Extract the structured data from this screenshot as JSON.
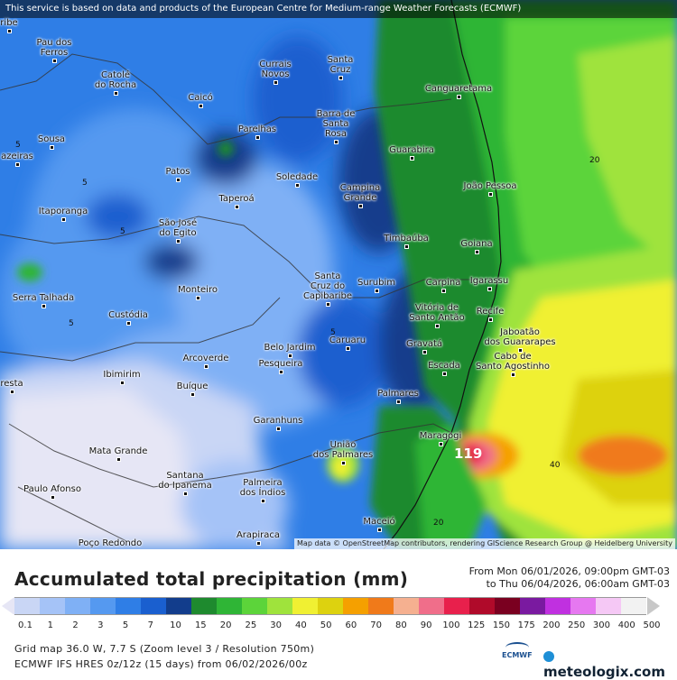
{
  "banner": "This service is based on data and products of the European Centre for Medium-range Weather Forecasts (ECMWF)",
  "attribution": "Map data © OpenStreetMap contributors, rendering GIScience Research Group @ Heidelberg University",
  "cities": [
    {
      "name": "Pau dos\nFerros",
      "label": "Pau dos Ferros"
    },
    {
      "name": "Catolé\ndo Rocha"
    },
    {
      "name": "Caicó"
    },
    {
      "name": "Currais\nNovos"
    },
    {
      "name": "Santa\nCruz"
    },
    {
      "name": "Canguaretama"
    },
    {
      "name": "Sousa"
    },
    {
      "name": "Parelhas"
    },
    {
      "name": "Barra de\nSanta\nRosa"
    },
    {
      "name": "Guarabira"
    },
    {
      "name": "Patos"
    },
    {
      "name": "Soledade"
    },
    {
      "name": "João Pessoa"
    },
    {
      "name": "Campina\nGrande"
    },
    {
      "name": "Taperoá"
    },
    {
      "name": "Itaporanga"
    },
    {
      "name": "São José\ndo Egito"
    },
    {
      "name": "Timbaúba"
    },
    {
      "name": "Goiana"
    },
    {
      "name": "Serra Talhada"
    },
    {
      "name": "Monteiro"
    },
    {
      "name": "Santa\nCruz do\nCapibaribe"
    },
    {
      "name": "Surubim"
    },
    {
      "name": "Carpina"
    },
    {
      "name": "Igarassu"
    },
    {
      "name": "Custódia"
    },
    {
      "name": "Vitória de\nSanto Antão"
    },
    {
      "name": "Recife"
    },
    {
      "name": "Jaboatão\ndos Guararapes"
    },
    {
      "name": "Belo Jardim"
    },
    {
      "name": "Caruaru"
    },
    {
      "name": "Gravatá"
    },
    {
      "name": "Arcoverde"
    },
    {
      "name": "Pesqueira"
    },
    {
      "name": "Escada"
    },
    {
      "name": "Cabo de\nSanto Agostinho"
    },
    {
      "name": "Ibimirim"
    },
    {
      "name": "Buíque"
    },
    {
      "name": "Palmares"
    },
    {
      "name": "Garanhuns"
    },
    {
      "name": "Maragogi"
    },
    {
      "name": "União\ndos Palmares"
    },
    {
      "name": "Mata Grande"
    },
    {
      "name": "Santana\ndo Ipanema"
    },
    {
      "name": "Palmeira\ndos Índios"
    },
    {
      "name": "Paulo Afonso"
    },
    {
      "name": "Maceió"
    },
    {
      "name": "Arapiraca"
    },
    {
      "name": "Poço Redondo"
    },
    {
      "name": "azeiras"
    },
    {
      "name": "ribe"
    },
    {
      "name": "resta"
    }
  ],
  "contour_labels": [
    "5",
    "5",
    "5",
    "5",
    "5",
    "20",
    "40",
    "20"
  ],
  "peak_value": "119",
  "title": "Accumulated total precipitation (mm)",
  "period_from": "From Mon 06/01/2026, 09:00pm GMT-03",
  "period_to": "to Thu 06/04/2026, 06:00am GMT-03",
  "legend": {
    "unit": "mm",
    "ticks": [
      "0.1",
      "1",
      "2",
      "3",
      "5",
      "7",
      "10",
      "15",
      "20",
      "25",
      "30",
      "40",
      "50",
      "60",
      "70",
      "80",
      "90",
      "100",
      "125",
      "150",
      "175",
      "200",
      "250",
      "300",
      "400",
      "500"
    ],
    "colors": [
      "#e6e6f5",
      "#c9d6f5",
      "#a5c3f7",
      "#7fb0f5",
      "#5599f0",
      "#2f7ee6",
      "#1a5fcf",
      "#123d8c",
      "#1e8a2e",
      "#2fb536",
      "#5cd43a",
      "#9fe33c",
      "#f0f032",
      "#ddd20f",
      "#f5a000",
      "#f07a1a",
      "#f5b090",
      "#f06e8a",
      "#e8204c",
      "#b00a2a",
      "#7a0020",
      "#7a1aa0",
      "#c030e0",
      "#e678f0",
      "#f5c8f5",
      "#f2f2f2",
      "#c8c8c8"
    ]
  },
  "footer_line1": "Grid map 36.0 W, 7.7 S (Zoom level 3 / Resolution 750m)",
  "footer_line2": "ECMWF IFS HRES 0z/12z (15 days) from 06/02/2026/00z",
  "logo_ecmwf": "ECMWF",
  "logo_meteologix": "meteologix.com"
}
